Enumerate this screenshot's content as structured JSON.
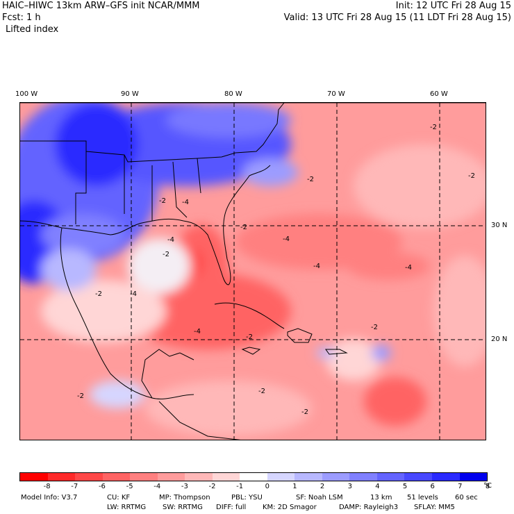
{
  "header": {
    "title": "HAIC–HIWC 13km ARW–GFS init   NCAR/MMM",
    "fcst": "Fcst:    1 h",
    "field": "Lifted index",
    "init": "Init: 12 UTC Fri 28 Aug 15",
    "valid": "Valid: 13 UTC Fri 28 Aug 15 (11 LDT Fri 28 Aug 15)"
  },
  "map": {
    "lon_labels": [
      "100 W",
      "90 W",
      "80 W",
      "70 W",
      "60 W"
    ],
    "lat_labels": [
      "30 N",
      "20 N"
    ],
    "contour_label": "-2",
    "contour_label_alt": "-4"
  },
  "colorbar": {
    "labels": [
      "-8",
      "-7",
      "-6",
      "-5",
      "-4",
      "-3",
      "-2",
      "-1",
      "0",
      "1",
      "2",
      "3",
      "4",
      "5",
      "6",
      "7",
      "8"
    ],
    "unit": "°C",
    "colors": [
      "#ff0000",
      "#ff2a2a",
      "#ff4848",
      "#ff6464",
      "#ff8080",
      "#ff9c9c",
      "#ffb8b8",
      "#ffd6d6",
      "#ffffff",
      "#d6d6ff",
      "#b8b8ff",
      "#9c9cff",
      "#8080ff",
      "#6464ff",
      "#4848ff",
      "#2a2aff",
      "#0000ee"
    ]
  },
  "footer": {
    "line1": {
      "model_info": "Model Info: V3.7",
      "cu": "CU: KF",
      "mp": "MP: Thompson",
      "pbl": "PBL: YSU",
      "sf": "SF: Noah LSM",
      "res": "13 km",
      "levels": "51 levels",
      "dt": "60 sec"
    },
    "line2": {
      "lw": "LW: RRTMG",
      "sw": "SW: RRTMG",
      "diff": "DIFF: full",
      "km": "KM: 2D Smagor",
      "damp": "DAMP: Rayleigh3",
      "sflay": "SFLAY: MM5"
    }
  }
}
